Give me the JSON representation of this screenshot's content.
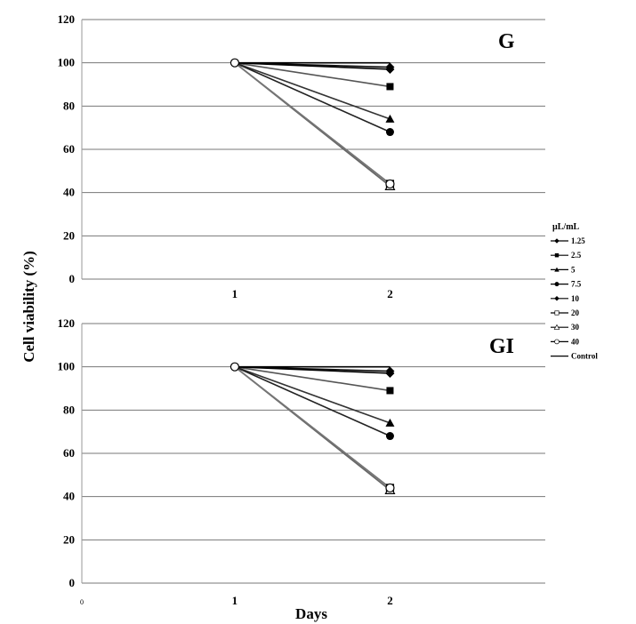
{
  "chart_data": {
    "type": "line",
    "ylabel": "Cell viability (%)",
    "xlabel": "Days",
    "legend": {
      "title": "µL/mL",
      "placement": "right",
      "entries": [
        "1.25",
        "2.5",
        "5",
        "7.5",
        "10",
        "20",
        "30",
        "40",
        "Control"
      ]
    },
    "panels": [
      {
        "label": "G",
        "x": [
          1,
          2
        ],
        "xticks": [
          "1",
          "2"
        ],
        "ylim": [
          0,
          120
        ],
        "yticks": [
          "0",
          "20",
          "40",
          "60",
          "80",
          "100",
          "120"
        ],
        "grid": true,
        "series": [
          {
            "name": "1.25",
            "values": [
              100,
              98
            ],
            "marker": "diamond"
          },
          {
            "name": "2.5",
            "values": [
              100,
              89
            ],
            "marker": "square"
          },
          {
            "name": "5",
            "values": [
              100,
              74
            ],
            "marker": "triangle"
          },
          {
            "name": "7.5",
            "values": [
              100,
              68
            ],
            "marker": "circle"
          },
          {
            "name": "10",
            "values": [
              100,
              97
            ],
            "marker": "diamond"
          },
          {
            "name": "20",
            "values": [
              100,
              44
            ],
            "marker": "open-square"
          },
          {
            "name": "30",
            "values": [
              100,
              43
            ],
            "marker": "open-triangle"
          },
          {
            "name": "40",
            "values": [
              100,
              44
            ],
            "marker": "open-circle"
          },
          {
            "name": "Control",
            "values": [
              100,
              100
            ],
            "marker": "line"
          }
        ]
      },
      {
        "label": "GI",
        "x": [
          1,
          2
        ],
        "xticks": [
          "0",
          "1",
          "2"
        ],
        "ylim": [
          0,
          120
        ],
        "yticks": [
          "0",
          "20",
          "40",
          "60",
          "80",
          "100",
          "120"
        ],
        "grid": true,
        "series": [
          {
            "name": "1.25",
            "values": [
              100,
              98
            ],
            "marker": "diamond"
          },
          {
            "name": "2.5",
            "values": [
              100,
              89
            ],
            "marker": "square"
          },
          {
            "name": "5",
            "values": [
              100,
              74
            ],
            "marker": "triangle"
          },
          {
            "name": "7.5",
            "values": [
              100,
              68
            ],
            "marker": "circle"
          },
          {
            "name": "10",
            "values": [
              100,
              97
            ],
            "marker": "diamond"
          },
          {
            "name": "20",
            "values": [
              100,
              44
            ],
            "marker": "open-square"
          },
          {
            "name": "30",
            "values": [
              100,
              43
            ],
            "marker": "open-triangle"
          },
          {
            "name": "40",
            "values": [
              100,
              44
            ],
            "marker": "open-circle"
          },
          {
            "name": "Control",
            "values": [
              100,
              100
            ],
            "marker": "line"
          }
        ]
      }
    ]
  }
}
